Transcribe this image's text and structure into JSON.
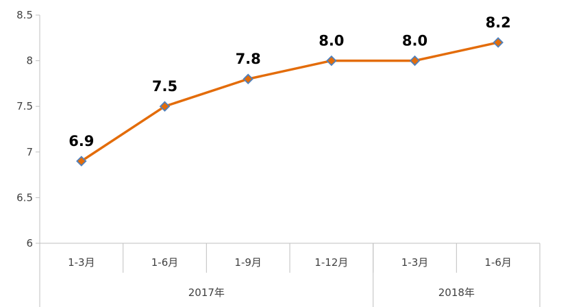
{
  "chart_data": {
    "type": "line",
    "title": "",
    "xlabel": "",
    "ylabel": "",
    "ylim": [
      6,
      8.5
    ],
    "yticks": [
      "6",
      "6.5",
      "7",
      "7.5",
      "8",
      "8.5"
    ],
    "ytick_values": [
      6,
      6.5,
      7,
      7.5,
      8,
      8.5
    ],
    "categories": [
      "1-3月",
      "1-6月",
      "1-9月",
      "1-12月",
      "1-3月",
      "1-6月"
    ],
    "groups": [
      {
        "label": "2017年",
        "count": 4
      },
      {
        "label": "2018年",
        "count": 2
      }
    ],
    "series": [
      {
        "values": [
          6.9,
          7.5,
          7.8,
          8.0,
          8.0,
          8.2
        ],
        "labels": [
          "6.9",
          "7.5",
          "7.8",
          "8.0",
          "8.0",
          "8.2"
        ],
        "line_color": "#E36C0A",
        "marker_fill": "#E36C0A",
        "marker_stroke": "#4F81BD"
      }
    ],
    "grid": false,
    "legend": "none"
  }
}
